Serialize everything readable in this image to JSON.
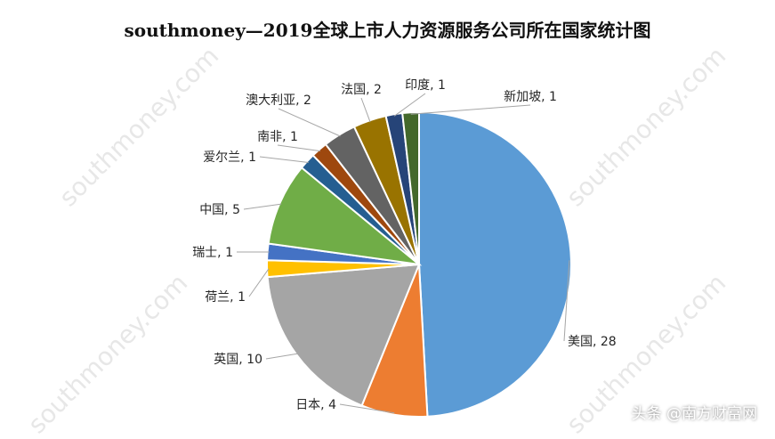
{
  "chart_data": {
    "type": "pie",
    "title": "southmoney—2019全球上市人力资源服务公司所在国家统计图",
    "slices": [
      {
        "label": "美国",
        "value": 28,
        "color": "#5B9BD5"
      },
      {
        "label": "日本",
        "value": 4,
        "color": "#ED7D31"
      },
      {
        "label": "英国",
        "value": 10,
        "color": "#A5A5A5"
      },
      {
        "label": "荷兰",
        "value": 1,
        "color": "#FFC000"
      },
      {
        "label": "瑞士",
        "value": 1,
        "color": "#4472C4"
      },
      {
        "label": "中国",
        "value": 5,
        "color": "#70AD47"
      },
      {
        "label": "爱尔兰",
        "value": 1,
        "color": "#255E91"
      },
      {
        "label": "南非",
        "value": 1,
        "color": "#9E480E"
      },
      {
        "label": "澳大利亚",
        "value": 2,
        "color": "#636363"
      },
      {
        "label": "法国",
        "value": 2,
        "color": "#997300"
      },
      {
        "label": "印度",
        "value": 1,
        "color": "#264478"
      },
      {
        "label": "新加坡",
        "value": 1,
        "color": "#43682B"
      }
    ],
    "label_separator": ", ",
    "legend": "none"
  },
  "watermark": "southmoney.com",
  "brand_badge": "头条 @南方财富网"
}
